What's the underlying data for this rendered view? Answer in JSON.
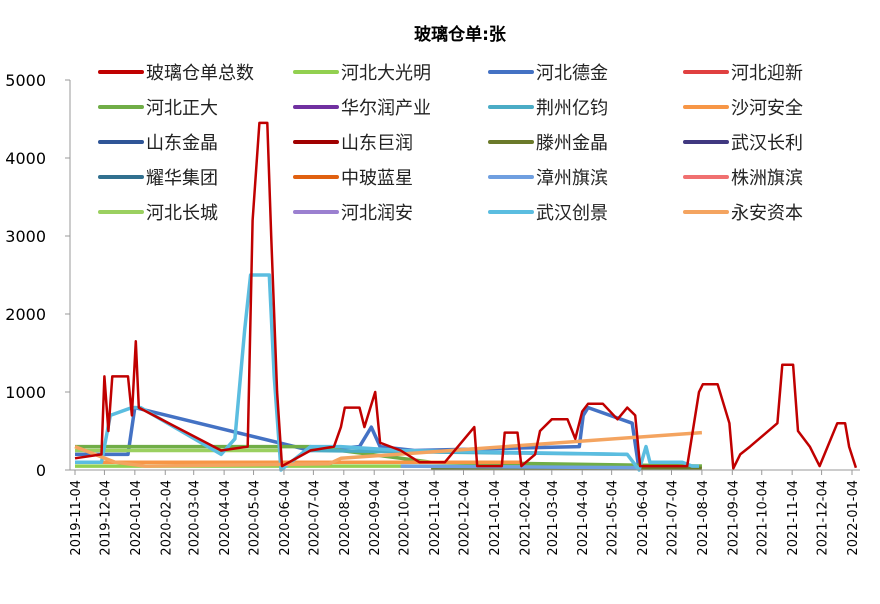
{
  "chart_data": {
    "type": "line",
    "title": "玻璃仓单:张",
    "xlabel": "",
    "ylabel": "",
    "ylim": [
      0,
      5000
    ],
    "yticks": [
      0,
      1000,
      2000,
      3000,
      4000,
      5000
    ],
    "xticks": [
      "2019-11-04",
      "2019-12-04",
      "2020-01-04",
      "2020-02-04",
      "2020-03-04",
      "2020-04-04",
      "2020-05-04",
      "2020-06-04",
      "2020-07-04",
      "2020-08-04",
      "2020-09-04",
      "2020-10-04",
      "2020-11-04",
      "2020-12-04",
      "2021-01-04",
      "2021-02-04",
      "2021-03-04",
      "2021-04-04",
      "2021-05-04",
      "2021-06-04",
      "2021-07-04",
      "2021-08-04",
      "2021-09-04",
      "2021-10-04",
      "2021-11-04",
      "2021-12-04",
      "2022-01-04"
    ],
    "grid": false,
    "legend": "top",
    "series": [
      {
        "name": "玻璃仓单总数",
        "color": "#c00000",
        "points": [
          [
            "2019-11-04",
            150
          ],
          [
            "2019-12-01",
            200
          ],
          [
            "2019-12-04",
            1200
          ],
          [
            "2019-12-08",
            500
          ],
          [
            "2019-12-12",
            1200
          ],
          [
            "2019-12-28",
            1200
          ],
          [
            "2020-01-01",
            700
          ],
          [
            "2020-01-05",
            1650
          ],
          [
            "2020-01-08",
            800
          ],
          [
            "2020-04-01",
            250
          ],
          [
            "2020-04-28",
            300
          ],
          [
            "2020-05-03",
            3200
          ],
          [
            "2020-05-10",
            4450
          ],
          [
            "2020-05-18",
            4450
          ],
          [
            "2020-05-22",
            3000
          ],
          [
            "2020-05-28",
            1000
          ],
          [
            "2020-06-02",
            50
          ],
          [
            "2020-07-01",
            250
          ],
          [
            "2020-07-25",
            300
          ],
          [
            "2020-08-01",
            550
          ],
          [
            "2020-08-05",
            800
          ],
          [
            "2020-08-20",
            800
          ],
          [
            "2020-08-25",
            550
          ],
          [
            "2020-09-05",
            1000
          ],
          [
            "2020-09-10",
            350
          ],
          [
            "2020-10-01",
            250
          ],
          [
            "2020-10-20",
            100
          ],
          [
            "2020-11-15",
            100
          ],
          [
            "2020-12-15",
            550
          ],
          [
            "2020-12-18",
            50
          ],
          [
            "2021-01-12",
            50
          ],
          [
            "2021-01-15",
            480
          ],
          [
            "2021-01-28",
            480
          ],
          [
            "2021-02-01",
            50
          ],
          [
            "2021-02-15",
            200
          ],
          [
            "2021-02-20",
            500
          ],
          [
            "2021-03-04",
            650
          ],
          [
            "2021-03-20",
            650
          ],
          [
            "2021-03-28",
            400
          ],
          [
            "2021-04-04",
            750
          ],
          [
            "2021-04-10",
            850
          ],
          [
            "2021-04-25",
            850
          ],
          [
            "2021-05-10",
            650
          ],
          [
            "2021-05-20",
            800
          ],
          [
            "2021-05-28",
            700
          ],
          [
            "2021-06-02",
            50
          ],
          [
            "2021-07-20",
            50
          ],
          [
            "2021-08-01",
            1000
          ],
          [
            "2021-08-05",
            1100
          ],
          [
            "2021-08-20",
            1100
          ],
          [
            "2021-09-01",
            600
          ],
          [
            "2021-09-05",
            20
          ],
          [
            "2021-09-12",
            200
          ],
          [
            "2021-09-22",
            300
          ],
          [
            "2021-10-20",
            600
          ],
          [
            "2021-10-25",
            1350
          ],
          [
            "2021-11-05",
            1350
          ],
          [
            "2021-11-10",
            500
          ],
          [
            "2021-11-22",
            300
          ],
          [
            "2021-12-02",
            50
          ],
          [
            "2021-12-20",
            600
          ],
          [
            "2021-12-28",
            600
          ],
          [
            "2022-01-01",
            300
          ],
          [
            "2022-01-08",
            30
          ]
        ]
      },
      {
        "name": "河北大光明",
        "color": "#92d050",
        "points": [
          [
            "2019-11-04",
            50
          ],
          [
            "2021-08-04",
            50
          ]
        ]
      },
      {
        "name": "河北德金",
        "color": "#4472c4",
        "points": [
          [
            "2019-11-04",
            200
          ],
          [
            "2019-12-28",
            200
          ],
          [
            "2020-01-04",
            800
          ],
          [
            "2020-07-01",
            250
          ],
          [
            "2020-08-20",
            300
          ],
          [
            "2020-09-01",
            550
          ],
          [
            "2020-09-10",
            300
          ],
          [
            "2020-10-15",
            250
          ],
          [
            "2021-04-01",
            300
          ],
          [
            "2021-04-05",
            700
          ],
          [
            "2021-04-10",
            800
          ],
          [
            "2021-05-25",
            600
          ],
          [
            "2021-06-01",
            0
          ]
        ]
      },
      {
        "name": "河北迎新",
        "color": "#e04040",
        "points": []
      },
      {
        "name": "河北正大",
        "color": "#70ad47",
        "points": [
          [
            "2019-11-04",
            300
          ],
          [
            "2020-07-01",
            300
          ],
          [
            "2020-08-01",
            250
          ],
          [
            "2020-11-01",
            100
          ],
          [
            "2021-08-04",
            50
          ]
        ]
      },
      {
        "name": "华尔润产业",
        "color": "#7030a0",
        "points": []
      },
      {
        "name": "荆州亿钧",
        "color": "#4bacc6",
        "points": [
          [
            "2020-07-01",
            250
          ],
          [
            "2021-05-20",
            200
          ]
        ]
      },
      {
        "name": "沙河安全",
        "color": "#f79646",
        "points": [
          [
            "2019-11-04",
            100
          ],
          [
            "2021-02-01",
            100
          ]
        ]
      },
      {
        "name": "山东金晶",
        "color": "#2f5597",
        "points": []
      },
      {
        "name": "山东巨润",
        "color": "#a00000",
        "points": []
      },
      {
        "name": "滕州金晶",
        "color": "#6b7a2a",
        "points": [
          [
            "2020-11-01",
            20
          ],
          [
            "2021-08-04",
            20
          ]
        ]
      },
      {
        "name": "武汉长利",
        "color": "#403880",
        "points": []
      },
      {
        "name": "耀华集团",
        "color": "#31708f",
        "points": []
      },
      {
        "name": "中玻蓝星",
        "color": "#e06010",
        "points": []
      },
      {
        "name": "漳州旗滨",
        "color": "#6f9fe0",
        "points": [
          [
            "2020-10-01",
            50
          ],
          [
            "2021-06-01",
            30
          ]
        ]
      },
      {
        "name": "株洲旗滨",
        "color": "#f07070",
        "points": []
      },
      {
        "name": "河北长城",
        "color": "#9bd060",
        "points": [
          [
            "2019-11-04",
            250
          ],
          [
            "2020-06-01",
            250
          ]
        ]
      },
      {
        "name": "河北润安",
        "color": "#9b80d0",
        "points": []
      },
      {
        "name": "武汉创景",
        "color": "#5bbde0",
        "points": [
          [
            "2019-11-04",
            100
          ],
          [
            "2019-12-01",
            100
          ],
          [
            "2019-12-10",
            700
          ],
          [
            "2020-01-01",
            800
          ],
          [
            "2020-01-10",
            800
          ],
          [
            "2020-04-01",
            200
          ],
          [
            "2020-04-15",
            400
          ],
          [
            "2020-04-25",
            1800
          ],
          [
            "2020-05-01",
            2500
          ],
          [
            "2020-05-20",
            2500
          ],
          [
            "2020-05-25",
            1200
          ],
          [
            "2020-06-01",
            0
          ],
          [
            "2020-07-01",
            300
          ],
          [
            "2020-08-01",
            300
          ],
          [
            "2020-10-01",
            250
          ],
          [
            "2021-05-20",
            200
          ],
          [
            "2021-06-01",
            0
          ],
          [
            "2021-06-08",
            300
          ],
          [
            "2021-06-12",
            100
          ],
          [
            "2021-07-15",
            100
          ],
          [
            "2021-07-25",
            50
          ],
          [
            "2021-08-01",
            50
          ]
        ]
      },
      {
        "name": "永安资本",
        "color": "#f4a460",
        "points": [
          [
            "2019-11-04",
            300
          ],
          [
            "2019-12-15",
            100
          ],
          [
            "2020-01-15",
            50
          ],
          [
            "2020-07-20",
            80
          ],
          [
            "2020-08-01",
            150
          ],
          [
            "2021-08-04",
            480
          ]
        ]
      }
    ]
  }
}
